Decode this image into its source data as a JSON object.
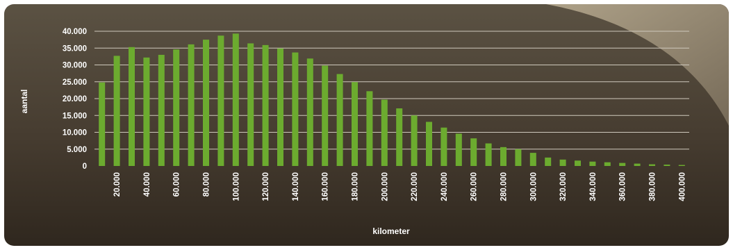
{
  "chart_data": {
    "type": "bar",
    "xlabel": "kilometer",
    "ylabel": "aantal",
    "ylim": [
      0,
      40000
    ],
    "y_ticks": [
      "0",
      "5.000",
      "10.000",
      "15.000",
      "20.000",
      "25.000",
      "30.000",
      "35.000",
      "40.000"
    ],
    "x_tick_labels": [
      "20.000",
      "40.000",
      "60.000",
      "80.000",
      "100.000",
      "120.000",
      "140.000",
      "160.000",
      "180.000",
      "200.000",
      "220.000",
      "240.000",
      "260.000",
      "280.000",
      "300.000",
      "320.000",
      "340.000",
      "360.000",
      "380.000",
      "400.000"
    ],
    "x": [
      10000,
      20000,
      30000,
      40000,
      50000,
      60000,
      70000,
      80000,
      90000,
      100000,
      110000,
      120000,
      130000,
      140000,
      150000,
      160000,
      170000,
      180000,
      190000,
      200000,
      210000,
      220000,
      230000,
      240000,
      250000,
      260000,
      270000,
      280000,
      290000,
      300000,
      310000,
      320000,
      330000,
      340000,
      350000,
      360000,
      370000,
      380000,
      390000,
      400000
    ],
    "values": [
      24800,
      32700,
      35300,
      32200,
      33000,
      34600,
      36100,
      37500,
      38700,
      39300,
      36400,
      35900,
      34900,
      33700,
      31900,
      29800,
      27300,
      24900,
      22200,
      19700,
      17100,
      15000,
      13100,
      11400,
      9600,
      8200,
      6700,
      5600,
      5000,
      3900,
      2500,
      1900,
      1600,
      1300,
      1100,
      900,
      700,
      500,
      400,
      300
    ],
    "grid": true,
    "legend": "none",
    "colors": {
      "bar": "#6cab2f",
      "grid": "#cfc9bd",
      "text": "#ffffff",
      "background": "#463c30"
    }
  }
}
